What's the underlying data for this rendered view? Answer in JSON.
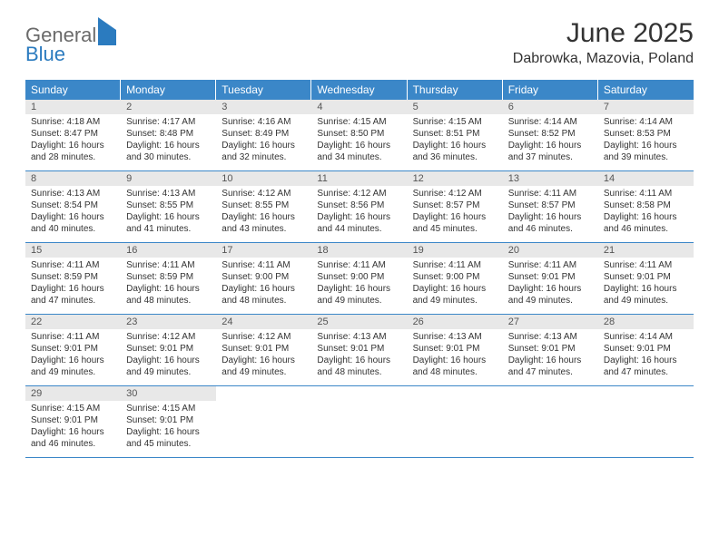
{
  "brand": {
    "part1": "General",
    "part2": "Blue"
  },
  "title": "June 2025",
  "location": "Dabrowka, Mazovia, Poland",
  "colors": {
    "header_bg": "#3b87c8",
    "header_text": "#ffffff",
    "daynum_bg": "#e8e8e8",
    "border": "#3b87c8",
    "body_text": "#333333",
    "logo_gray": "#6a6a6a",
    "logo_blue": "#2b7bbf",
    "page_bg": "#ffffff"
  },
  "typography": {
    "title_fontsize": 30,
    "location_fontsize": 16,
    "dow_fontsize": 12,
    "daynum_fontsize": 11,
    "body_fontsize": 10
  },
  "dow": [
    "Sunday",
    "Monday",
    "Tuesday",
    "Wednesday",
    "Thursday",
    "Friday",
    "Saturday"
  ],
  "weeks": [
    [
      {
        "n": "1",
        "sunrise": "Sunrise: 4:18 AM",
        "sunset": "Sunset: 8:47 PM",
        "daylight": "Daylight: 16 hours and 28 minutes."
      },
      {
        "n": "2",
        "sunrise": "Sunrise: 4:17 AM",
        "sunset": "Sunset: 8:48 PM",
        "daylight": "Daylight: 16 hours and 30 minutes."
      },
      {
        "n": "3",
        "sunrise": "Sunrise: 4:16 AM",
        "sunset": "Sunset: 8:49 PM",
        "daylight": "Daylight: 16 hours and 32 minutes."
      },
      {
        "n": "4",
        "sunrise": "Sunrise: 4:15 AM",
        "sunset": "Sunset: 8:50 PM",
        "daylight": "Daylight: 16 hours and 34 minutes."
      },
      {
        "n": "5",
        "sunrise": "Sunrise: 4:15 AM",
        "sunset": "Sunset: 8:51 PM",
        "daylight": "Daylight: 16 hours and 36 minutes."
      },
      {
        "n": "6",
        "sunrise": "Sunrise: 4:14 AM",
        "sunset": "Sunset: 8:52 PM",
        "daylight": "Daylight: 16 hours and 37 minutes."
      },
      {
        "n": "7",
        "sunrise": "Sunrise: 4:14 AM",
        "sunset": "Sunset: 8:53 PM",
        "daylight": "Daylight: 16 hours and 39 minutes."
      }
    ],
    [
      {
        "n": "8",
        "sunrise": "Sunrise: 4:13 AM",
        "sunset": "Sunset: 8:54 PM",
        "daylight": "Daylight: 16 hours and 40 minutes."
      },
      {
        "n": "9",
        "sunrise": "Sunrise: 4:13 AM",
        "sunset": "Sunset: 8:55 PM",
        "daylight": "Daylight: 16 hours and 41 minutes."
      },
      {
        "n": "10",
        "sunrise": "Sunrise: 4:12 AM",
        "sunset": "Sunset: 8:55 PM",
        "daylight": "Daylight: 16 hours and 43 minutes."
      },
      {
        "n": "11",
        "sunrise": "Sunrise: 4:12 AM",
        "sunset": "Sunset: 8:56 PM",
        "daylight": "Daylight: 16 hours and 44 minutes."
      },
      {
        "n": "12",
        "sunrise": "Sunrise: 4:12 AM",
        "sunset": "Sunset: 8:57 PM",
        "daylight": "Daylight: 16 hours and 45 minutes."
      },
      {
        "n": "13",
        "sunrise": "Sunrise: 4:11 AM",
        "sunset": "Sunset: 8:57 PM",
        "daylight": "Daylight: 16 hours and 46 minutes."
      },
      {
        "n": "14",
        "sunrise": "Sunrise: 4:11 AM",
        "sunset": "Sunset: 8:58 PM",
        "daylight": "Daylight: 16 hours and 46 minutes."
      }
    ],
    [
      {
        "n": "15",
        "sunrise": "Sunrise: 4:11 AM",
        "sunset": "Sunset: 8:59 PM",
        "daylight": "Daylight: 16 hours and 47 minutes."
      },
      {
        "n": "16",
        "sunrise": "Sunrise: 4:11 AM",
        "sunset": "Sunset: 8:59 PM",
        "daylight": "Daylight: 16 hours and 48 minutes."
      },
      {
        "n": "17",
        "sunrise": "Sunrise: 4:11 AM",
        "sunset": "Sunset: 9:00 PM",
        "daylight": "Daylight: 16 hours and 48 minutes."
      },
      {
        "n": "18",
        "sunrise": "Sunrise: 4:11 AM",
        "sunset": "Sunset: 9:00 PM",
        "daylight": "Daylight: 16 hours and 49 minutes."
      },
      {
        "n": "19",
        "sunrise": "Sunrise: 4:11 AM",
        "sunset": "Sunset: 9:00 PM",
        "daylight": "Daylight: 16 hours and 49 minutes."
      },
      {
        "n": "20",
        "sunrise": "Sunrise: 4:11 AM",
        "sunset": "Sunset: 9:01 PM",
        "daylight": "Daylight: 16 hours and 49 minutes."
      },
      {
        "n": "21",
        "sunrise": "Sunrise: 4:11 AM",
        "sunset": "Sunset: 9:01 PM",
        "daylight": "Daylight: 16 hours and 49 minutes."
      }
    ],
    [
      {
        "n": "22",
        "sunrise": "Sunrise: 4:11 AM",
        "sunset": "Sunset: 9:01 PM",
        "daylight": "Daylight: 16 hours and 49 minutes."
      },
      {
        "n": "23",
        "sunrise": "Sunrise: 4:12 AM",
        "sunset": "Sunset: 9:01 PM",
        "daylight": "Daylight: 16 hours and 49 minutes."
      },
      {
        "n": "24",
        "sunrise": "Sunrise: 4:12 AM",
        "sunset": "Sunset: 9:01 PM",
        "daylight": "Daylight: 16 hours and 49 minutes."
      },
      {
        "n": "25",
        "sunrise": "Sunrise: 4:13 AM",
        "sunset": "Sunset: 9:01 PM",
        "daylight": "Daylight: 16 hours and 48 minutes."
      },
      {
        "n": "26",
        "sunrise": "Sunrise: 4:13 AM",
        "sunset": "Sunset: 9:01 PM",
        "daylight": "Daylight: 16 hours and 48 minutes."
      },
      {
        "n": "27",
        "sunrise": "Sunrise: 4:13 AM",
        "sunset": "Sunset: 9:01 PM",
        "daylight": "Daylight: 16 hours and 47 minutes."
      },
      {
        "n": "28",
        "sunrise": "Sunrise: 4:14 AM",
        "sunset": "Sunset: 9:01 PM",
        "daylight": "Daylight: 16 hours and 47 minutes."
      }
    ],
    [
      {
        "n": "29",
        "sunrise": "Sunrise: 4:15 AM",
        "sunset": "Sunset: 9:01 PM",
        "daylight": "Daylight: 16 hours and 46 minutes."
      },
      {
        "n": "30",
        "sunrise": "Sunrise: 4:15 AM",
        "sunset": "Sunset: 9:01 PM",
        "daylight": "Daylight: 16 hours and 45 minutes."
      },
      null,
      null,
      null,
      null,
      null
    ]
  ]
}
